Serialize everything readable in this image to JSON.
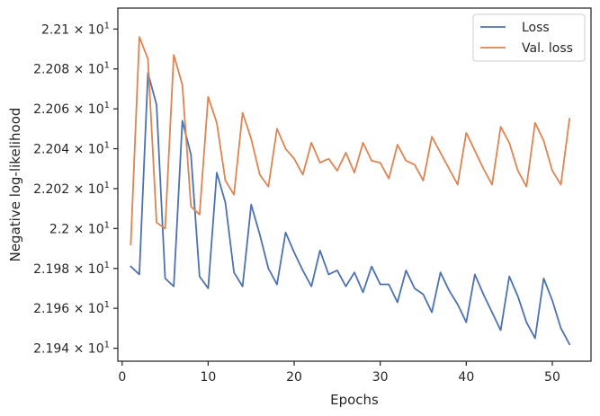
{
  "chart_data": {
    "type": "line",
    "xlabel": "Epochs",
    "ylabel": "Negative log-likelihood",
    "xlim": [
      -0.5,
      54.5
    ],
    "ylim": [
      21.9335,
      22.1105
    ],
    "x_ticks": [
      0,
      10,
      20,
      30,
      40,
      50
    ],
    "y_ticks": [
      {
        "value": 21.94,
        "mantissa": "2.194",
        "exponent": "1"
      },
      {
        "value": 21.96,
        "mantissa": "2.196",
        "exponent": "1"
      },
      {
        "value": 21.98,
        "mantissa": "2.198",
        "exponent": "1"
      },
      {
        "value": 22.0,
        "mantissa": "2.2",
        "exponent": "1"
      },
      {
        "value": 22.02,
        "mantissa": "2.202",
        "exponent": "1"
      },
      {
        "value": 22.04,
        "mantissa": "2.204",
        "exponent": "1"
      },
      {
        "value": 22.06,
        "mantissa": "2.206",
        "exponent": "1"
      },
      {
        "value": 22.08,
        "mantissa": "2.208",
        "exponent": "1"
      },
      {
        "value": 22.1,
        "mantissa": "2.21",
        "exponent": "1"
      }
    ],
    "x": [
      1,
      2,
      3,
      4,
      5,
      6,
      7,
      8,
      9,
      10,
      11,
      12,
      13,
      14,
      15,
      16,
      17,
      18,
      19,
      20,
      21,
      22,
      23,
      24,
      25,
      26,
      27,
      28,
      29,
      30,
      31,
      32,
      33,
      34,
      35,
      36,
      37,
      38,
      39,
      40,
      41,
      42,
      43,
      44,
      45,
      46,
      47,
      48,
      49,
      50,
      51,
      52
    ],
    "series": [
      {
        "name": "Loss",
        "color": "#4c72b0",
        "values": [
          21.981,
          21.977,
          22.078,
          22.062,
          21.975,
          21.971,
          22.054,
          22.037,
          21.976,
          21.97,
          22.028,
          22.013,
          21.978,
          21.971,
          22.012,
          21.997,
          21.98,
          21.972,
          21.998,
          21.988,
          21.979,
          21.971,
          21.989,
          21.977,
          21.979,
          21.971,
          21.978,
          21.968,
          21.981,
          21.972,
          21.972,
          21.963,
          21.979,
          21.97,
          21.967,
          21.958,
          21.978,
          21.969,
          21.962,
          21.953,
          21.977,
          21.967,
          21.958,
          21.949,
          21.976,
          21.966,
          21.953,
          21.945,
          21.975,
          21.964,
          21.95,
          21.942
        ]
      },
      {
        "name": "Val. loss",
        "color": "#dd8452",
        "values": [
          21.992,
          22.096,
          22.085,
          22.003,
          22.0,
          22.087,
          22.072,
          22.011,
          22.007,
          22.066,
          22.053,
          22.024,
          22.017,
          22.058,
          22.045,
          22.027,
          22.021,
          22.05,
          22.04,
          22.035,
          22.027,
          22.043,
          22.033,
          22.035,
          22.029,
          22.038,
          22.028,
          22.043,
          22.034,
          22.033,
          22.025,
          22.042,
          22.034,
          22.032,
          22.024,
          22.046,
          22.038,
          22.03,
          22.022,
          22.048,
          22.039,
          22.03,
          22.022,
          22.051,
          22.043,
          22.029,
          22.021,
          22.053,
          22.044,
          22.029,
          22.022,
          22.055
        ]
      }
    ],
    "grid": false,
    "legend_position": "top-right"
  }
}
